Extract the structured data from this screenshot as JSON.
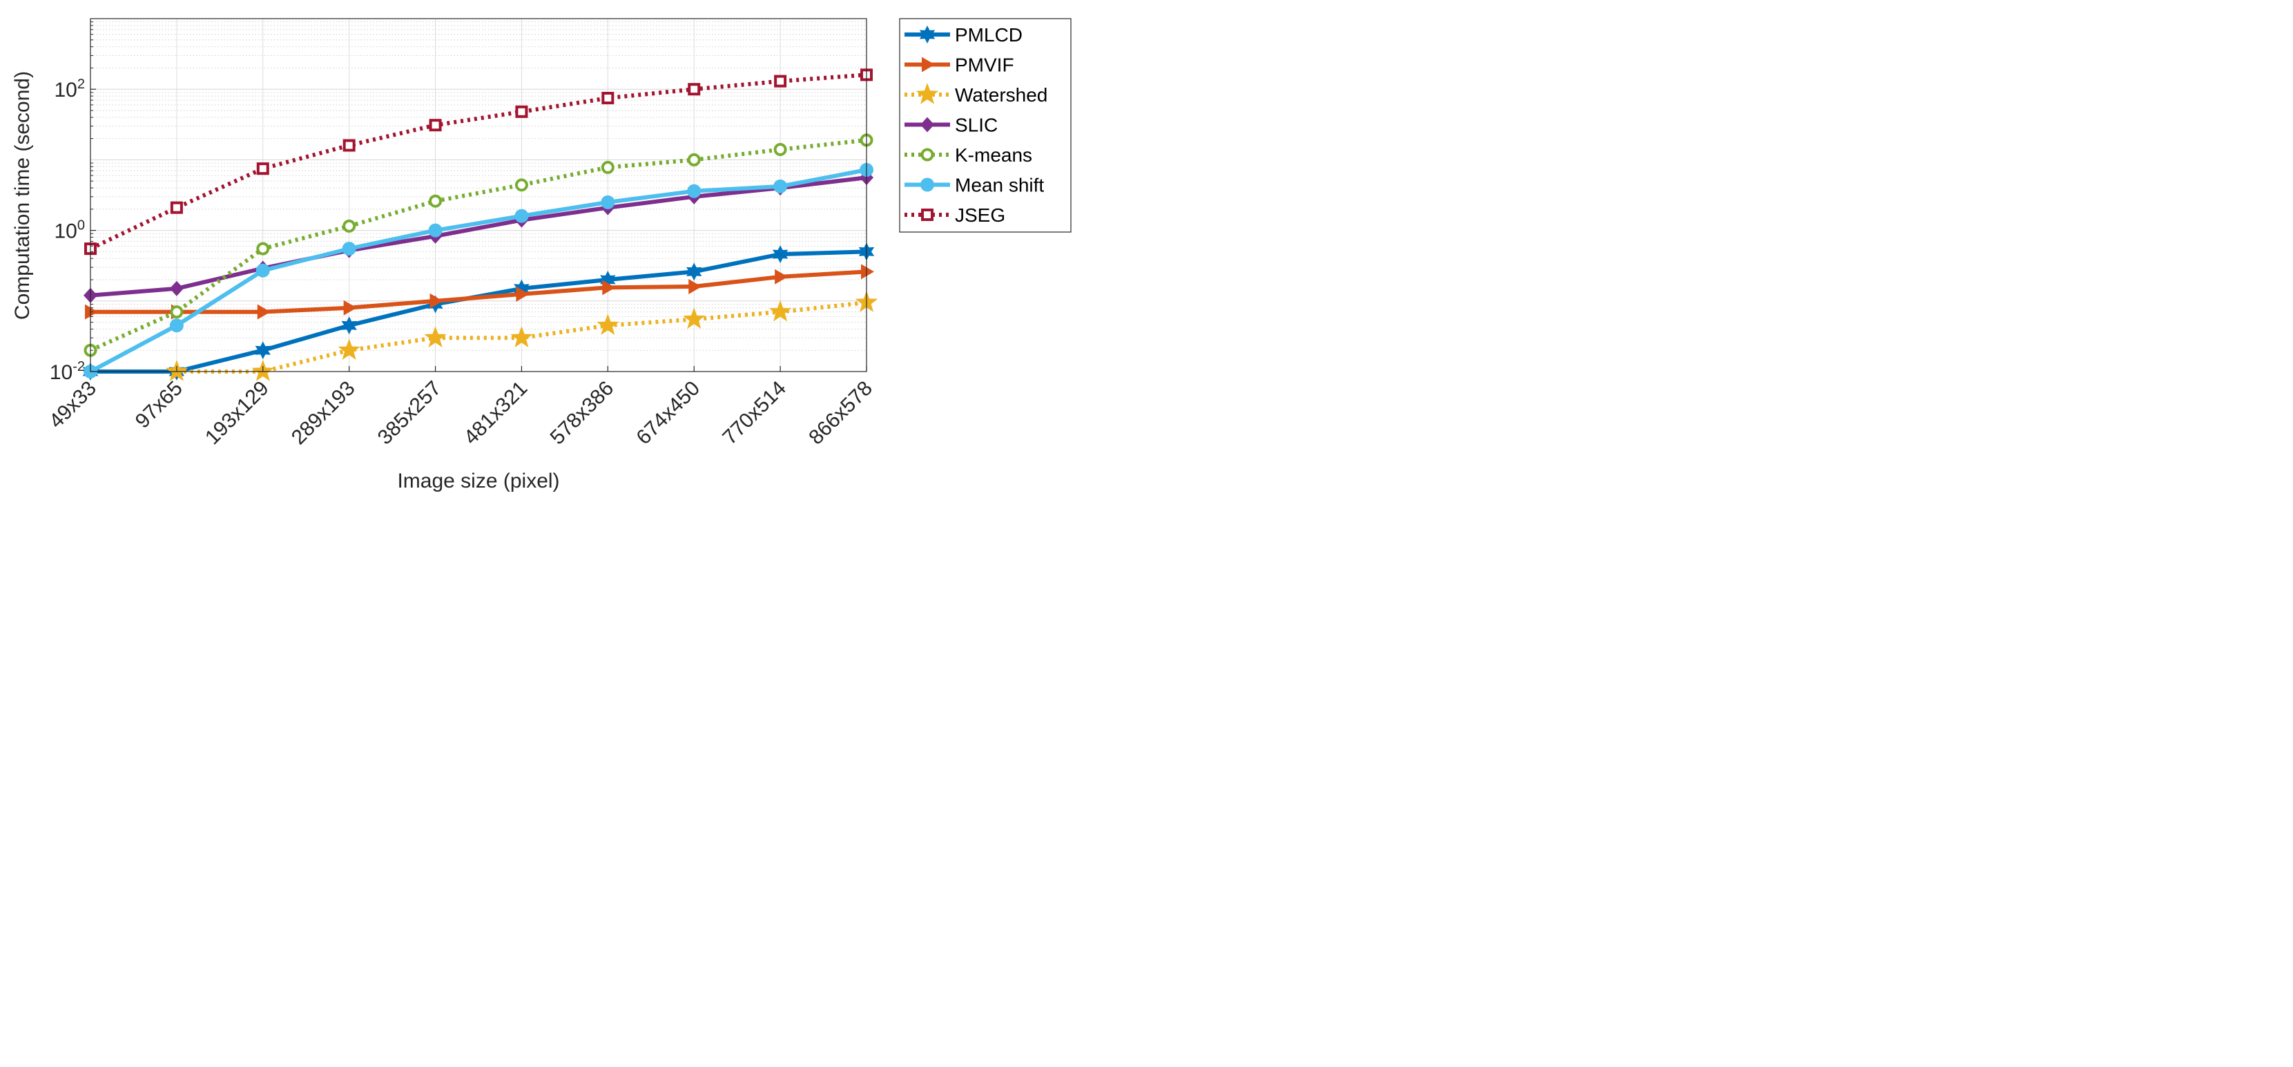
{
  "chart_data": {
    "type": "line",
    "yscale": "log",
    "xlabel": "Image size (pixel)",
    "ylabel": "Computation time (second)",
    "ylim": [
      0.01,
      1000
    ],
    "yticks": [
      {
        "value": 0.01,
        "base": "10",
        "exp": "-2"
      },
      {
        "value": 1,
        "base": "10",
        "exp": "0"
      },
      {
        "value": 100,
        "base": "10",
        "exp": "2"
      }
    ],
    "categories": [
      "49x33",
      "97x65",
      "193x129",
      "289x193",
      "385x257",
      "481x321",
      "578x386",
      "674x450",
      "770x514",
      "866x578"
    ],
    "grid": true,
    "legend_position": "outside-right",
    "series": [
      {
        "name": "PMLCD",
        "color": "#0072BD",
        "dash": "solid",
        "marker": "hexagram",
        "values": [
          0.01,
          0.01,
          0.02,
          0.045,
          0.09,
          0.15,
          0.2,
          0.26,
          0.46,
          0.5
        ]
      },
      {
        "name": "PMVIF",
        "color": "#D95319",
        "dash": "solid",
        "marker": "triangle-right",
        "values": [
          0.07,
          0.07,
          0.07,
          0.08,
          0.1,
          0.125,
          0.155,
          0.16,
          0.22,
          0.26
        ]
      },
      {
        "name": "Watershed",
        "color": "#EDB120",
        "dash": "dotted",
        "marker": "pentagram",
        "values": [
          null,
          0.01,
          0.01,
          0.02,
          0.03,
          0.03,
          0.045,
          0.055,
          0.07,
          0.095
        ]
      },
      {
        "name": "SLIC",
        "color": "#7E2F8E",
        "dash": "solid",
        "marker": "diamond",
        "values": [
          0.12,
          0.15,
          0.29,
          0.52,
          0.83,
          1.4,
          2.1,
          3.0,
          4.0,
          5.6
        ]
      },
      {
        "name": "K-means",
        "color": "#77AC30",
        "dash": "dotted",
        "marker": "circle-open",
        "values": [
          0.02,
          0.07,
          0.55,
          1.15,
          2.6,
          4.4,
          7.8,
          10.0,
          14.0,
          19.0
        ]
      },
      {
        "name": "Mean shift",
        "color": "#4DBEEE",
        "dash": "solid",
        "marker": "circle",
        "values": [
          0.01,
          0.045,
          0.27,
          0.55,
          1.0,
          1.6,
          2.5,
          3.6,
          4.2,
          7.2
        ]
      },
      {
        "name": "JSEG",
        "color": "#A2142F",
        "dash": "dotted",
        "marker": "square-open",
        "values": [
          0.55,
          2.1,
          7.5,
          16.0,
          31.0,
          48.0,
          75.0,
          100.0,
          130.0,
          160.0
        ]
      }
    ]
  }
}
